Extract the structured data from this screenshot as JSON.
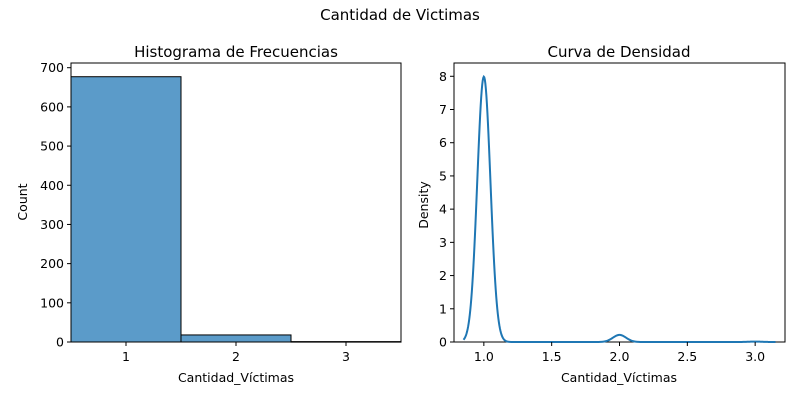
{
  "figure": {
    "suptitle": "Cantidad de Victimas"
  },
  "chart_data": [
    {
      "type": "bar",
      "title": "Histograma de Frecuencias",
      "xlabel": "Cantidad_Víctimas",
      "ylabel": "Count",
      "categories": [
        "1",
        "2",
        "3"
      ],
      "values": [
        677,
        18,
        1
      ],
      "xlim": [
        0.5,
        3.5
      ],
      "ylim": [
        0,
        712
      ],
      "xticks": [
        1,
        2,
        3
      ],
      "yticks": [
        0,
        100,
        200,
        300,
        400,
        500,
        600,
        700
      ],
      "bar_color": "#5b9bc9",
      "edge_color": "#000000",
      "grid": false
    },
    {
      "type": "line",
      "title": "Curva de Densidad",
      "xlabel": "Cantidad_Víctimas",
      "ylabel": "Density",
      "xlim": [
        0.78,
        3.22
      ],
      "ylim": [
        0,
        8.4
      ],
      "xticks": [
        1.0,
        1.5,
        2.0,
        2.5,
        3.0
      ],
      "yticks": [
        0,
        1,
        2,
        3,
        4,
        5,
        6,
        7,
        8
      ],
      "line_color": "#1f77b4",
      "grid": false,
      "x_range": [
        0.85,
        3.15
      ],
      "components": [
        {
          "center": 1.0,
          "weight": 0.973,
          "sd": 0.0486
        },
        {
          "center": 2.0,
          "weight": 0.026,
          "sd": 0.0486
        },
        {
          "center": 3.0,
          "weight": 0.0015,
          "sd": 0.0486
        }
      ]
    }
  ]
}
